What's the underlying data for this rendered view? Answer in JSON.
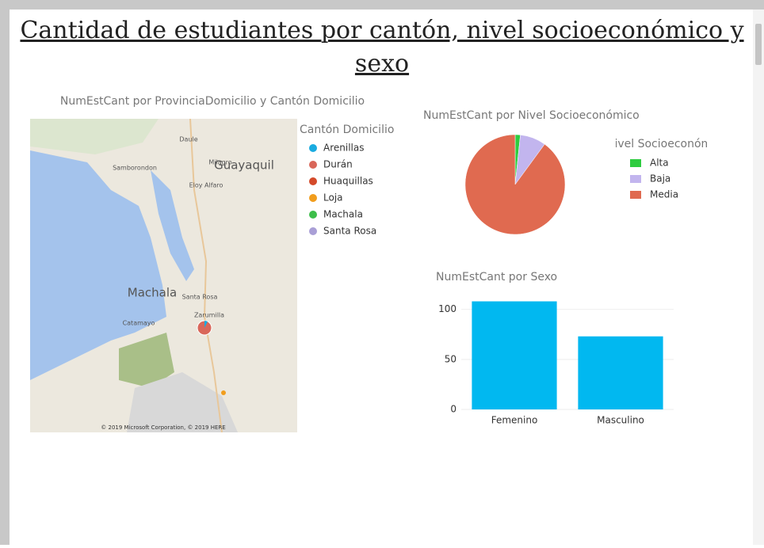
{
  "title": "Cantidad de estudiantes por cantón, nivel socioeconómico y sexo",
  "chart_data": [
    {
      "type": "map",
      "title": "NumEstCant por ProvinciaDomicilio y Cantón Domicilio",
      "legend_title": "Cantón Domicilio",
      "series": [
        {
          "name": "Arenillas",
          "color": "#1aabe0"
        },
        {
          "name": "Durán",
          "color": "#d9675a"
        },
        {
          "name": "Huaquillas",
          "color": "#d44a2a"
        },
        {
          "name": "Loja",
          "color": "#f19d1d"
        },
        {
          "name": "Machala",
          "color": "#3dbe4a"
        },
        {
          "name": "Santa Rosa",
          "color": "#a99fd6"
        }
      ],
      "map_labels": [
        "Daule",
        "Samborondon",
        "Guayaquil",
        "Milagro",
        "Eloy Alfaro",
        "Machala",
        "Santa Rosa",
        "Zarumilla",
        "Catamayo"
      ],
      "attribution": "© 2019 Microsoft Corporation, © 2019 HERE"
    },
    {
      "type": "pie",
      "title": "NumEstCant por Nivel Socioeconómico",
      "legend_title": "Nivel Socioeconómico",
      "categories": [
        "Alta",
        "Baja",
        "Media"
      ],
      "values": [
        3,
        15,
        161
      ],
      "colors": [
        "#2ecc40",
        "#c2b5ee",
        "#e06a50"
      ]
    },
    {
      "type": "bar",
      "title": "NumEstCant por Sexo",
      "categories": [
        "Femenino",
        "Masculino"
      ],
      "values": [
        108,
        73
      ],
      "color": "#01b8f0",
      "ylim": [
        0,
        110
      ],
      "yticks": [
        0,
        50,
        100
      ],
      "grid": true
    }
  ]
}
